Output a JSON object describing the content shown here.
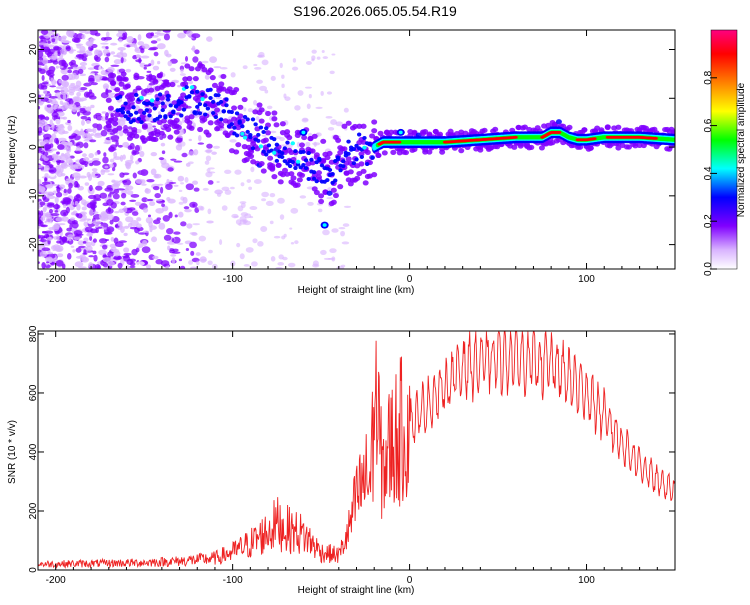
{
  "title": "S196.2026.065.05.54.R19",
  "chart_data": [
    {
      "type": "heatmap",
      "title": "S196.2026.065.05.54.R19",
      "xlabel": "Height of straight line (km)",
      "ylabel": "Frequency (Hz)",
      "xlim": [
        -210,
        150
      ],
      "ylim": [
        -25,
        24
      ],
      "xticks": [
        -200,
        -100,
        0,
        100
      ],
      "yticks": [
        -20,
        -10,
        0,
        10,
        20
      ],
      "colorbar": {
        "label": "Normalized spectral amplitude",
        "range": [
          0,
          1
        ],
        "ticks": [
          "0.0",
          "0.2",
          "0.4",
          "0.6",
          "0.8"
        ],
        "colors": [
          "#ffffff",
          "#d9b3ff",
          "#8000ff",
          "#0000ff",
          "#00ffff",
          "#00ff00",
          "#ffff00",
          "#ff8000",
          "#ff0000",
          "#ff0080"
        ]
      },
      "ridge": {
        "name": "dominant frequency track",
        "x": [
          -165,
          -150,
          -135,
          -120,
          -110,
          -100,
          -90,
          -80,
          -70,
          -60,
          -50,
          -45,
          -40,
          -35,
          -30,
          -25,
          -20,
          -15,
          -10,
          0,
          10,
          20,
          40,
          60,
          75,
          80,
          85,
          90,
          95,
          100,
          110,
          120,
          130,
          150
        ],
        "y": [
          8,
          8,
          9,
          10,
          9,
          6,
          3,
          1,
          -1,
          -3,
          -5,
          -6,
          -4,
          -1,
          0,
          -1,
          0,
          1,
          1,
          1,
          1,
          1,
          1.5,
          2,
          2,
          3,
          3,
          2,
          1.5,
          1.5,
          2,
          2,
          2,
          1.5
        ]
      }
    },
    {
      "type": "line",
      "xlabel": "Height of straight line (km)",
      "ylabel": "SNR (10 * v/v)",
      "xlim": [
        -210,
        150
      ],
      "ylim": [
        0,
        810
      ],
      "xticks": [
        -200,
        -100,
        0,
        100
      ],
      "yticks": [
        0,
        200,
        400,
        600,
        800
      ],
      "series": [
        {
          "name": "SNR",
          "color": "#ee2222",
          "x": [
            -210,
            -180,
            -150,
            -130,
            -110,
            -100,
            -90,
            -80,
            -75,
            -70,
            -60,
            -50,
            -40,
            -35,
            -30,
            -25,
            -22,
            -20,
            -18,
            -15,
            -10,
            -5,
            0,
            10,
            20,
            30,
            40,
            50,
            60,
            70,
            80,
            90,
            100,
            110,
            120,
            130,
            140,
            150
          ],
          "y": [
            20,
            22,
            25,
            30,
            40,
            60,
            90,
            130,
            160,
            140,
            120,
            60,
            50,
            120,
            240,
            310,
            300,
            360,
            380,
            350,
            430,
            470,
            490,
            560,
            620,
            690,
            700,
            720,
            720,
            710,
            700,
            650,
            600,
            520,
            430,
            360,
            300,
            270
          ]
        }
      ]
    }
  ]
}
